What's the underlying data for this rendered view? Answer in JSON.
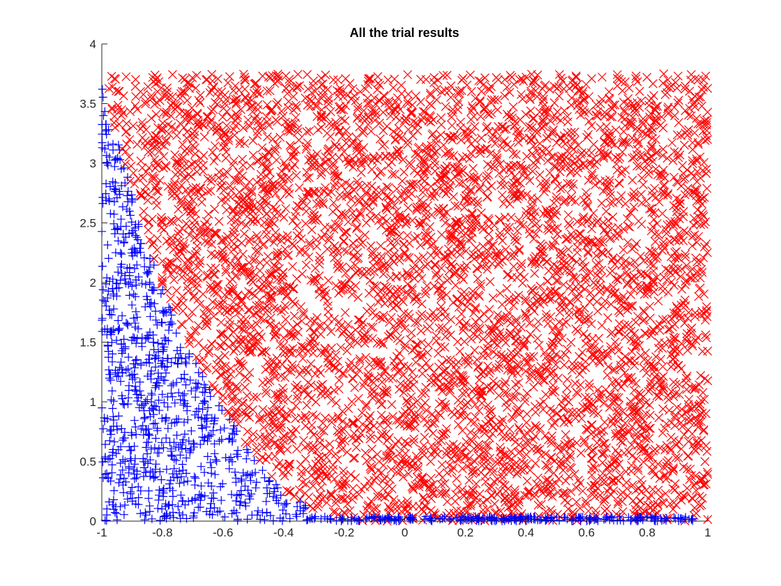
{
  "chart_data": {
    "type": "scatter",
    "title": "All the trial results",
    "xlabel": "",
    "ylabel": "",
    "xlim": [
      -1,
      1
    ],
    "ylim": [
      0,
      4
    ],
    "x_ticks": [
      -1,
      -0.8,
      -0.6,
      -0.4,
      -0.2,
      0,
      0.2,
      0.4,
      0.6,
      0.8,
      1
    ],
    "x_tick_labels": [
      "-1",
      "-0.8",
      "-0.6",
      "-0.4",
      "-0.2",
      "0",
      "0.2",
      "0.4",
      "0.6",
      "0.8",
      "1"
    ],
    "y_ticks": [
      0,
      0.5,
      1,
      1.5,
      2,
      2.5,
      3,
      3.5,
      4
    ],
    "y_tick_labels": [
      "0",
      "0.5",
      "1",
      "1.5",
      "2",
      "2.5",
      "3",
      "3.5",
      "4"
    ],
    "grid": false,
    "legend": "none",
    "sampled_region": {
      "x": [
        -1,
        1
      ],
      "y": [
        0,
        3.75
      ]
    },
    "series": [
      {
        "marker": "plus",
        "color": "#0000ff",
        "region": "lower-left triangle: below the line from (-1, 3.7) to (-0.3, 0.1); plus scattered points along y near 0",
        "boundary": [
          [
            -1,
            3.7
          ],
          [
            -0.95,
            3.2
          ],
          [
            -0.88,
            2.6
          ],
          [
            -0.8,
            1.95
          ],
          [
            -0.7,
            1.4
          ],
          [
            -0.6,
            0.95
          ],
          [
            -0.5,
            0.55
          ],
          [
            -0.4,
            0.25
          ],
          [
            -0.3,
            0.1
          ],
          [
            -0.2,
            0.03
          ]
        ],
        "approx_count": 1100
      },
      {
        "marker": "x",
        "color": "#ff0000",
        "region": "remaining area above/right of the boundary, y from 0 to 3.75",
        "approx_count": 5200
      }
    ]
  }
}
